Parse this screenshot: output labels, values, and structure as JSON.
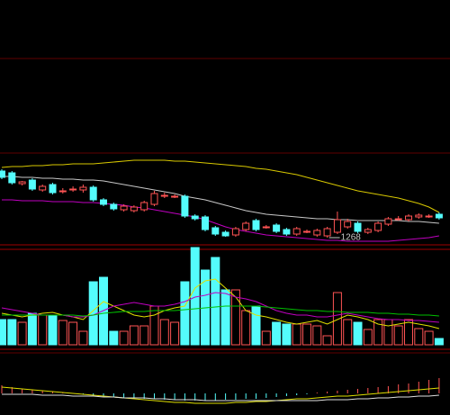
{
  "chart_data": [
    {
      "type": "candlestick",
      "up_color": "#ff5454",
      "down_color": "#54fcfc",
      "ylim": [
        1260,
        1362
      ],
      "low_label": 1268,
      "open": [
        1342,
        1340,
        1328,
        1332,
        1321,
        1327,
        1320,
        1322,
        1321,
        1324,
        1310,
        1305,
        1299,
        1298,
        1299,
        1305,
        1314,
        1314,
        1314,
        1292,
        1291,
        1279,
        1274,
        1271,
        1277,
        1287,
        1280,
        1282,
        1277,
        1272,
        1275,
        1271,
        1270,
        1274,
        1280,
        1284,
        1274,
        1276,
        1283,
        1289,
        1288,
        1291,
        1292,
        1294
      ],
      "high": [
        1344,
        1342,
        1331,
        1334,
        1327,
        1329,
        1323,
        1325,
        1327,
        1326,
        1312,
        1307,
        1305,
        1304,
        1309,
        1320,
        1318,
        1316,
        1316,
        1294,
        1293,
        1281,
        1276,
        1280,
        1286,
        1289,
        1282,
        1284,
        1279,
        1280,
        1277,
        1278,
        1280,
        1297,
        1289,
        1286,
        1279,
        1286,
        1291,
        1292,
        1294,
        1295,
        1294,
        1296
      ],
      "low": [
        1333,
        1327,
        1326,
        1320,
        1319,
        1316,
        1317,
        1319,
        1318,
        1308,
        1303,
        1298,
        1297,
        1296,
        1297,
        1303,
        1312,
        1312,
        1290,
        1287,
        1275,
        1270,
        1269,
        1269,
        1275,
        1275,
        1278,
        1273,
        1270,
        1270,
        1273,
        1269,
        1268,
        1272,
        1278,
        1273,
        1272,
        1274,
        1281,
        1287,
        1286,
        1289,
        1290,
        1288
      ],
      "close": [
        1335,
        1329,
        1330,
        1322,
        1325,
        1318,
        1320,
        1322,
        1324,
        1310,
        1305,
        1300,
        1303,
        1302,
        1307,
        1317,
        1315,
        1314,
        1292,
        1289,
        1277,
        1272,
        1270,
        1278,
        1284,
        1277,
        1280,
        1275,
        1272,
        1278,
        1275,
        1276,
        1278,
        1288,
        1286,
        1275,
        1277,
        1284,
        1289,
        1289,
        1292,
        1293,
        1292,
        1290
      ],
      "series": [
        {
          "color": "#d8c800",
          "values": [
            1346,
            1347,
            1347,
            1348,
            1348,
            1349,
            1349,
            1350,
            1350,
            1350,
            1351,
            1352,
            1353,
            1354,
            1354,
            1354,
            1354,
            1353,
            1353,
            1352,
            1351,
            1350,
            1349,
            1348,
            1347,
            1345,
            1344,
            1342,
            1340,
            1338,
            1335,
            1332,
            1329,
            1326,
            1323,
            1320,
            1318,
            1316,
            1314,
            1312,
            1309,
            1306,
            1302,
            1296
          ]
        },
        {
          "color": "#c8c8c8",
          "values": [
            1336,
            1336,
            1335,
            1335,
            1334,
            1334,
            1333,
            1333,
            1332,
            1332,
            1331,
            1329,
            1327,
            1325,
            1323,
            1321,
            1319,
            1317,
            1314,
            1312,
            1310,
            1307,
            1304,
            1301,
            1298,
            1296,
            1294,
            1293,
            1292,
            1291,
            1290,
            1289,
            1289,
            1288,
            1288,
            1287,
            1287,
            1287,
            1287,
            1287,
            1286,
            1286,
            1285,
            1284
          ]
        },
        {
          "color": "#c000c0",
          "values": [
            1310,
            1310,
            1309,
            1309,
            1309,
            1308,
            1308,
            1308,
            1307,
            1307,
            1306,
            1305,
            1304,
            1302,
            1301,
            1299,
            1297,
            1295,
            1293,
            1291,
            1288,
            1284,
            1280,
            1277,
            1275,
            1273,
            1271,
            1270,
            1269,
            1268,
            1267,
            1266,
            1265,
            1265,
            1264,
            1264,
            1264,
            1264,
            1264,
            1265,
            1266,
            1267,
            1268,
            1270
          ]
        }
      ]
    },
    {
      "type": "volume",
      "up_color": "#ff5454",
      "down_color": "#54fcfc",
      "ylim": [
        0,
        110
      ],
      "values": [
        28,
        28,
        25,
        35,
        33,
        33,
        27,
        25,
        15,
        70,
        75,
        15,
        15,
        21,
        21,
        43,
        28,
        25,
        70,
        108,
        83,
        97,
        61,
        61,
        38,
        43,
        15,
        25,
        23,
        23,
        23,
        21,
        10,
        58,
        28,
        25,
        17,
        28,
        28,
        21,
        28,
        18,
        15,
        7
      ],
      "series": [
        {
          "color": "#e0e000",
          "values": [
            35,
            33,
            31,
            33,
            35,
            36,
            33,
            31,
            28,
            38,
            48,
            43,
            38,
            33,
            31,
            33,
            38,
            41,
            43,
            63,
            71,
            73,
            63,
            53,
            38,
            33,
            31,
            28,
            25,
            23,
            25,
            27,
            23,
            28,
            33,
            31,
            28,
            23,
            21,
            23,
            25,
            23,
            21,
            18
          ]
        },
        {
          "color": "#c000c0",
          "values": [
            41,
            39,
            37,
            35,
            33,
            33,
            33,
            31,
            31,
            33,
            38,
            43,
            45,
            47,
            45,
            43,
            43,
            45,
            48,
            53,
            55,
            58,
            57,
            53,
            51,
            48,
            43,
            38,
            35,
            33,
            33,
            31,
            31,
            33,
            35,
            33,
            31,
            29,
            28,
            28,
            27,
            27,
            26,
            25
          ]
        },
        {
          "color": "#00c000",
          "values": [
            33,
            33,
            33,
            33,
            33,
            33,
            33,
            33,
            32,
            33,
            35,
            36,
            37,
            37,
            37,
            38,
            38,
            38,
            39,
            40,
            41,
            42,
            43,
            43,
            43,
            43,
            42,
            41,
            40,
            39,
            38,
            38,
            37,
            37,
            36,
            36,
            36,
            35,
            35,
            34,
            34,
            33,
            33,
            32
          ]
        }
      ]
    },
    {
      "type": "macd",
      "up_color": "#ff5454",
      "down_color": "#54fcfc",
      "ylim": [
        -24,
        42
      ],
      "values": [
        9,
        7,
        5,
        4,
        3,
        2,
        1,
        0,
        -1,
        -2,
        -3,
        -4,
        -5,
        -5,
        -6,
        -6,
        -7,
        -7,
        -8,
        -8,
        -8,
        -8,
        -7,
        -7,
        -6,
        -6,
        -5,
        -4,
        -3,
        -2,
        -1,
        1,
        2,
        3,
        4,
        5,
        6,
        7,
        8,
        10,
        11,
        13,
        15,
        17
      ],
      "series": [
        {
          "color": "#e0e000",
          "values": [
            7,
            6,
            5,
            4,
            3,
            2,
            1,
            0,
            -1,
            -2,
            -3,
            -4,
            -5,
            -6,
            -7,
            -8,
            -9,
            -10,
            -10,
            -11,
            -11,
            -11,
            -11,
            -10,
            -10,
            -9,
            -9,
            -8,
            -7,
            -6,
            -6,
            -5,
            -4,
            -3,
            -3,
            -2,
            -1,
            0,
            1,
            2,
            3,
            4,
            5,
            6
          ]
        },
        {
          "color": "#e0e0e0",
          "values": [
            -1,
            -1,
            -1,
            -1,
            -2,
            -2,
            -2,
            -3,
            -3,
            -3,
            -4,
            -4,
            -5,
            -5,
            -5,
            -6,
            -6,
            -7,
            -7,
            -7,
            -8,
            -8,
            -8,
            -8,
            -8,
            -8,
            -8,
            -8,
            -8,
            -8,
            -8,
            -8,
            -7,
            -7,
            -7,
            -6,
            -6,
            -5,
            -5,
            -4,
            -4,
            -3,
            -3,
            -2
          ]
        }
      ]
    }
  ]
}
